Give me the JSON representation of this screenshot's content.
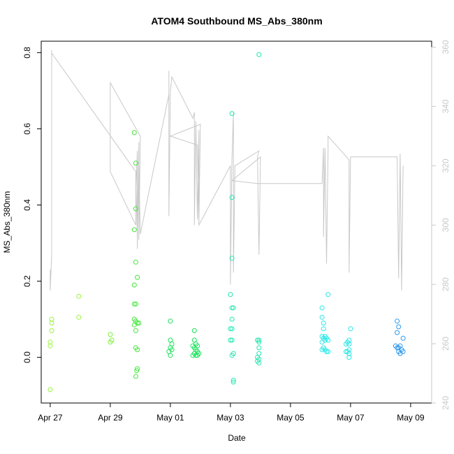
{
  "chart_data": {
    "type": "scatter",
    "title": "ATOM4 Southbound MS_Abs_380nm",
    "xlabel": "Date",
    "ylabel": "MS_Abs_380nm",
    "x_ticks": [
      "Apr 27",
      "Apr 29",
      "May 01",
      "May 03",
      "May 05",
      "May 07",
      "May 09"
    ],
    "xlim": [
      -0.3,
      12.7
    ],
    "ylim": [
      -0.12,
      0.83
    ],
    "y_ticks": [
      0.0,
      0.2,
      0.4,
      0.6,
      0.8
    ],
    "y_tick_labels": [
      "0.0",
      "0.2",
      "0.4",
      "0.6",
      "0.8"
    ],
    "y2_lim": [
      240,
      362
    ],
    "y2_ticks": [
      240,
      260,
      280,
      300,
      320,
      340,
      360
    ],
    "y2_tick_labels": [
      "240",
      "260",
      "280",
      "300",
      "320",
      "340",
      "360"
    ],
    "colors": {
      "axis": "#000000",
      "secondary": "#c8c8c8"
    },
    "points": [
      {
        "x": 0.0,
        "y": 0.04,
        "c": "#9af53a"
      },
      {
        "x": 0.0,
        "y": 0.03,
        "c": "#9af53a"
      },
      {
        "x": 0.05,
        "y": 0.09,
        "c": "#9af53a"
      },
      {
        "x": 0.05,
        "y": 0.07,
        "c": "#9af53a"
      },
      {
        "x": 0.05,
        "y": 0.1,
        "c": "#9af53a"
      },
      {
        "x": 0.0,
        "y": -0.085,
        "c": "#9af53a"
      },
      {
        "x": 0.95,
        "y": 0.16,
        "c": "#9af53a"
      },
      {
        "x": 0.95,
        "y": 0.105,
        "c": "#9af53a"
      },
      {
        "x": 2.0,
        "y": 0.06,
        "c": "#7af03a"
      },
      {
        "x": 2.0,
        "y": 0.04,
        "c": "#7af03a"
      },
      {
        "x": 2.05,
        "y": 0.045,
        "c": "#7af03a"
      },
      {
        "x": 2.8,
        "y": 0.59,
        "c": "#42e83a"
      },
      {
        "x": 2.85,
        "y": 0.51,
        "c": "#42e83a"
      },
      {
        "x": 2.85,
        "y": 0.39,
        "c": "#42e83a"
      },
      {
        "x": 2.8,
        "y": 0.335,
        "c": "#42e83a"
      },
      {
        "x": 2.85,
        "y": 0.25,
        "c": "#42e83a"
      },
      {
        "x": 2.9,
        "y": 0.21,
        "c": "#42e83a"
      },
      {
        "x": 2.8,
        "y": 0.19,
        "c": "#42e83a"
      },
      {
        "x": 2.85,
        "y": 0.14,
        "c": "#42e83a"
      },
      {
        "x": 2.8,
        "y": 0.14,
        "c": "#42e83a"
      },
      {
        "x": 2.8,
        "y": 0.1,
        "c": "#42e83a"
      },
      {
        "x": 2.85,
        "y": 0.095,
        "c": "#42e83a"
      },
      {
        "x": 2.9,
        "y": 0.09,
        "c": "#42e83a"
      },
      {
        "x": 2.8,
        "y": 0.085,
        "c": "#42e83a"
      },
      {
        "x": 2.95,
        "y": 0.09,
        "c": "#42e83a"
      },
      {
        "x": 2.85,
        "y": 0.07,
        "c": "#42e83a"
      },
      {
        "x": 2.85,
        "y": 0.025,
        "c": "#42e83a"
      },
      {
        "x": 2.9,
        "y": 0.02,
        "c": "#42e83a"
      },
      {
        "x": 2.9,
        "y": -0.03,
        "c": "#42e83a"
      },
      {
        "x": 2.88,
        "y": -0.035,
        "c": "#42e83a"
      },
      {
        "x": 2.85,
        "y": -0.05,
        "c": "#42e83a"
      },
      {
        "x": 4.0,
        "y": 0.095,
        "c": "#18e25a"
      },
      {
        "x": 4.0,
        "y": 0.045,
        "c": "#18e25a"
      },
      {
        "x": 4.05,
        "y": 0.035,
        "c": "#18e25a"
      },
      {
        "x": 4.0,
        "y": 0.025,
        "c": "#18e25a"
      },
      {
        "x": 4.05,
        "y": 0.02,
        "c": "#18e25a"
      },
      {
        "x": 3.95,
        "y": 0.015,
        "c": "#18e25a"
      },
      {
        "x": 4.0,
        "y": 0.005,
        "c": "#18e25a"
      },
      {
        "x": 4.8,
        "y": 0.07,
        "c": "#18e25a"
      },
      {
        "x": 4.8,
        "y": 0.045,
        "c": "#18e25a"
      },
      {
        "x": 4.85,
        "y": 0.035,
        "c": "#18e25a"
      },
      {
        "x": 4.75,
        "y": 0.03,
        "c": "#18e25a"
      },
      {
        "x": 4.9,
        "y": 0.03,
        "c": "#18e25a"
      },
      {
        "x": 4.8,
        "y": 0.025,
        "c": "#18e25a"
      },
      {
        "x": 4.85,
        "y": 0.02,
        "c": "#18e25a"
      },
      {
        "x": 4.9,
        "y": 0.015,
        "c": "#18e25a"
      },
      {
        "x": 4.8,
        "y": 0.01,
        "c": "#18e25a"
      },
      {
        "x": 4.95,
        "y": 0.01,
        "c": "#18e25a"
      },
      {
        "x": 4.85,
        "y": 0.005,
        "c": "#18e25a"
      },
      {
        "x": 4.75,
        "y": 0.005,
        "c": "#18e25a"
      },
      {
        "x": 4.9,
        "y": 0.005,
        "c": "#18e25a"
      },
      {
        "x": 6.05,
        "y": 0.64,
        "c": "#22e8b0"
      },
      {
        "x": 6.05,
        "y": 0.42,
        "c": "#22e8b0"
      },
      {
        "x": 6.05,
        "y": 0.26,
        "c": "#22e8b0"
      },
      {
        "x": 6.0,
        "y": 0.165,
        "c": "#22e8b0"
      },
      {
        "x": 6.05,
        "y": 0.13,
        "c": "#22e8b0"
      },
      {
        "x": 6.1,
        "y": 0.13,
        "c": "#22e8b0"
      },
      {
        "x": 6.05,
        "y": 0.1,
        "c": "#22e8b0"
      },
      {
        "x": 6.05,
        "y": 0.075,
        "c": "#22e8b0"
      },
      {
        "x": 6.0,
        "y": 0.075,
        "c": "#22e8b0"
      },
      {
        "x": 6.0,
        "y": 0.045,
        "c": "#22e8b0"
      },
      {
        "x": 6.05,
        "y": 0.045,
        "c": "#22e8b0"
      },
      {
        "x": 6.1,
        "y": 0.01,
        "c": "#22e8b0"
      },
      {
        "x": 6.05,
        "y": 0.005,
        "c": "#22e8b0"
      },
      {
        "x": 6.1,
        "y": -0.06,
        "c": "#22e8b0"
      },
      {
        "x": 6.1,
        "y": -0.065,
        "c": "#22e8b0"
      },
      {
        "x": 6.95,
        "y": 0.795,
        "c": "#22e8b0"
      },
      {
        "x": 6.95,
        "y": 0.045,
        "c": "#22e8b0"
      },
      {
        "x": 6.95,
        "y": 0.04,
        "c": "#22e8b0"
      },
      {
        "x": 6.9,
        "y": 0.045,
        "c": "#22e8b0"
      },
      {
        "x": 6.95,
        "y": 0.025,
        "c": "#22e8b0"
      },
      {
        "x": 6.95,
        "y": 0.01,
        "c": "#22e8b0"
      },
      {
        "x": 6.9,
        "y": 0.0,
        "c": "#22e8b0"
      },
      {
        "x": 6.95,
        "y": -0.005,
        "c": "#22e8b0"
      },
      {
        "x": 6.9,
        "y": -0.01,
        "c": "#22e8b0"
      },
      {
        "x": 6.95,
        "y": -0.015,
        "c": "#22e8b0"
      },
      {
        "x": 9.05,
        "y": 0.13,
        "c": "#28e8e8"
      },
      {
        "x": 9.05,
        "y": 0.105,
        "c": "#28e8e8"
      },
      {
        "x": 9.25,
        "y": 0.165,
        "c": "#28e8e8"
      },
      {
        "x": 9.1,
        "y": 0.09,
        "c": "#28e8e8"
      },
      {
        "x": 9.1,
        "y": 0.075,
        "c": "#28e8e8"
      },
      {
        "x": 9.05,
        "y": 0.055,
        "c": "#28e8e8"
      },
      {
        "x": 9.15,
        "y": 0.055,
        "c": "#28e8e8"
      },
      {
        "x": 9.1,
        "y": 0.05,
        "c": "#28e8e8"
      },
      {
        "x": 9.2,
        "y": 0.05,
        "c": "#28e8e8"
      },
      {
        "x": 9.25,
        "y": 0.045,
        "c": "#28e8e8"
      },
      {
        "x": 9.15,
        "y": 0.045,
        "c": "#28e8e8"
      },
      {
        "x": 9.05,
        "y": 0.04,
        "c": "#28e8e8"
      },
      {
        "x": 9.1,
        "y": 0.025,
        "c": "#28e8e8"
      },
      {
        "x": 9.05,
        "y": 0.02,
        "c": "#28e8e8"
      },
      {
        "x": 9.15,
        "y": 0.02,
        "c": "#28e8e8"
      },
      {
        "x": 9.2,
        "y": 0.015,
        "c": "#28e8e8"
      },
      {
        "x": 9.25,
        "y": 0.015,
        "c": "#28e8e8"
      },
      {
        "x": 10.0,
        "y": 0.075,
        "c": "#28e8e8"
      },
      {
        "x": 9.95,
        "y": 0.045,
        "c": "#28e8e8"
      },
      {
        "x": 9.9,
        "y": 0.04,
        "c": "#28e8e8"
      },
      {
        "x": 9.95,
        "y": 0.035,
        "c": "#28e8e8"
      },
      {
        "x": 9.85,
        "y": 0.035,
        "c": "#28e8e8"
      },
      {
        "x": 9.95,
        "y": 0.02,
        "c": "#28e8e8"
      },
      {
        "x": 9.9,
        "y": 0.015,
        "c": "#28e8e8"
      },
      {
        "x": 9.85,
        "y": 0.015,
        "c": "#28e8e8"
      },
      {
        "x": 9.95,
        "y": 0.01,
        "c": "#28e8e8"
      },
      {
        "x": 9.95,
        "y": 0.0,
        "c": "#28e8e8"
      },
      {
        "x": 11.55,
        "y": 0.095,
        "c": "#2a98ee"
      },
      {
        "x": 11.6,
        "y": 0.08,
        "c": "#2a98ee"
      },
      {
        "x": 11.55,
        "y": 0.065,
        "c": "#2a98ee"
      },
      {
        "x": 11.75,
        "y": 0.05,
        "c": "#2a98ee"
      },
      {
        "x": 11.5,
        "y": 0.03,
        "c": "#2a98ee"
      },
      {
        "x": 11.55,
        "y": 0.025,
        "c": "#2a98ee"
      },
      {
        "x": 11.6,
        "y": 0.025,
        "c": "#2a98ee"
      },
      {
        "x": 11.65,
        "y": 0.03,
        "c": "#2a98ee"
      },
      {
        "x": 11.7,
        "y": 0.02,
        "c": "#2a98ee"
      },
      {
        "x": 11.6,
        "y": 0.015,
        "c": "#2a98ee"
      },
      {
        "x": 11.65,
        "y": 0.01,
        "c": "#2a98ee"
      },
      {
        "x": 11.75,
        "y": 0.015,
        "c": "#2a98ee"
      }
    ],
    "secondary_line": [
      [
        0.0,
        285
      ],
      [
        0.0,
        278
      ],
      [
        0.05,
        290
      ],
      [
        0.05,
        352
      ],
      [
        0.05,
        359
      ],
      [
        0.05,
        358
      ],
      [
        2.85,
        318
      ],
      [
        2.85,
        310
      ],
      [
        2.9,
        325
      ],
      [
        2.9,
        292
      ],
      [
        2.95,
        328
      ],
      [
        2.95,
        295
      ],
      [
        3.0,
        330
      ],
      [
        2.0,
        348
      ],
      [
        2.0,
        318
      ],
      [
        2.85,
        300
      ],
      [
        2.85,
        316
      ],
      [
        2.9,
        296
      ],
      [
        2.95,
        320
      ],
      [
        3.0,
        297
      ],
      [
        3.95,
        344
      ],
      [
        3.95,
        352
      ],
      [
        3.95,
        303
      ],
      [
        4.0,
        345
      ],
      [
        4.05,
        350
      ],
      [
        4.75,
        336
      ],
      [
        4.8,
        338
      ],
      [
        4.8,
        300
      ],
      [
        4.85,
        335
      ],
      [
        4.9,
        302
      ],
      [
        4.95,
        332
      ],
      [
        4.95,
        301
      ],
      [
        5.0,
        334
      ],
      [
        4.0,
        330
      ],
      [
        4.9,
        327
      ],
      [
        4.95,
        300
      ],
      [
        6.0,
        320
      ],
      [
        6.0,
        280
      ],
      [
        6.05,
        322
      ],
      [
        6.1,
        338
      ],
      [
        6.1,
        284
      ],
      [
        6.15,
        320
      ],
      [
        6.95,
        325
      ],
      [
        6.9,
        323
      ],
      [
        6.95,
        290
      ],
      [
        7.0,
        323
      ],
      [
        6.05,
        315
      ],
      [
        6.9,
        314
      ],
      [
        9.05,
        314
      ],
      [
        9.1,
        326
      ],
      [
        9.1,
        296
      ],
      [
        9.15,
        326
      ],
      [
        9.2,
        287
      ],
      [
        9.25,
        325
      ],
      [
        9.25,
        330
      ],
      [
        9.95,
        322
      ],
      [
        9.95,
        284
      ],
      [
        10.0,
        323
      ],
      [
        11.55,
        323
      ],
      [
        11.6,
        282
      ],
      [
        11.65,
        324
      ],
      [
        11.7,
        278
      ],
      [
        11.75,
        320
      ]
    ]
  }
}
